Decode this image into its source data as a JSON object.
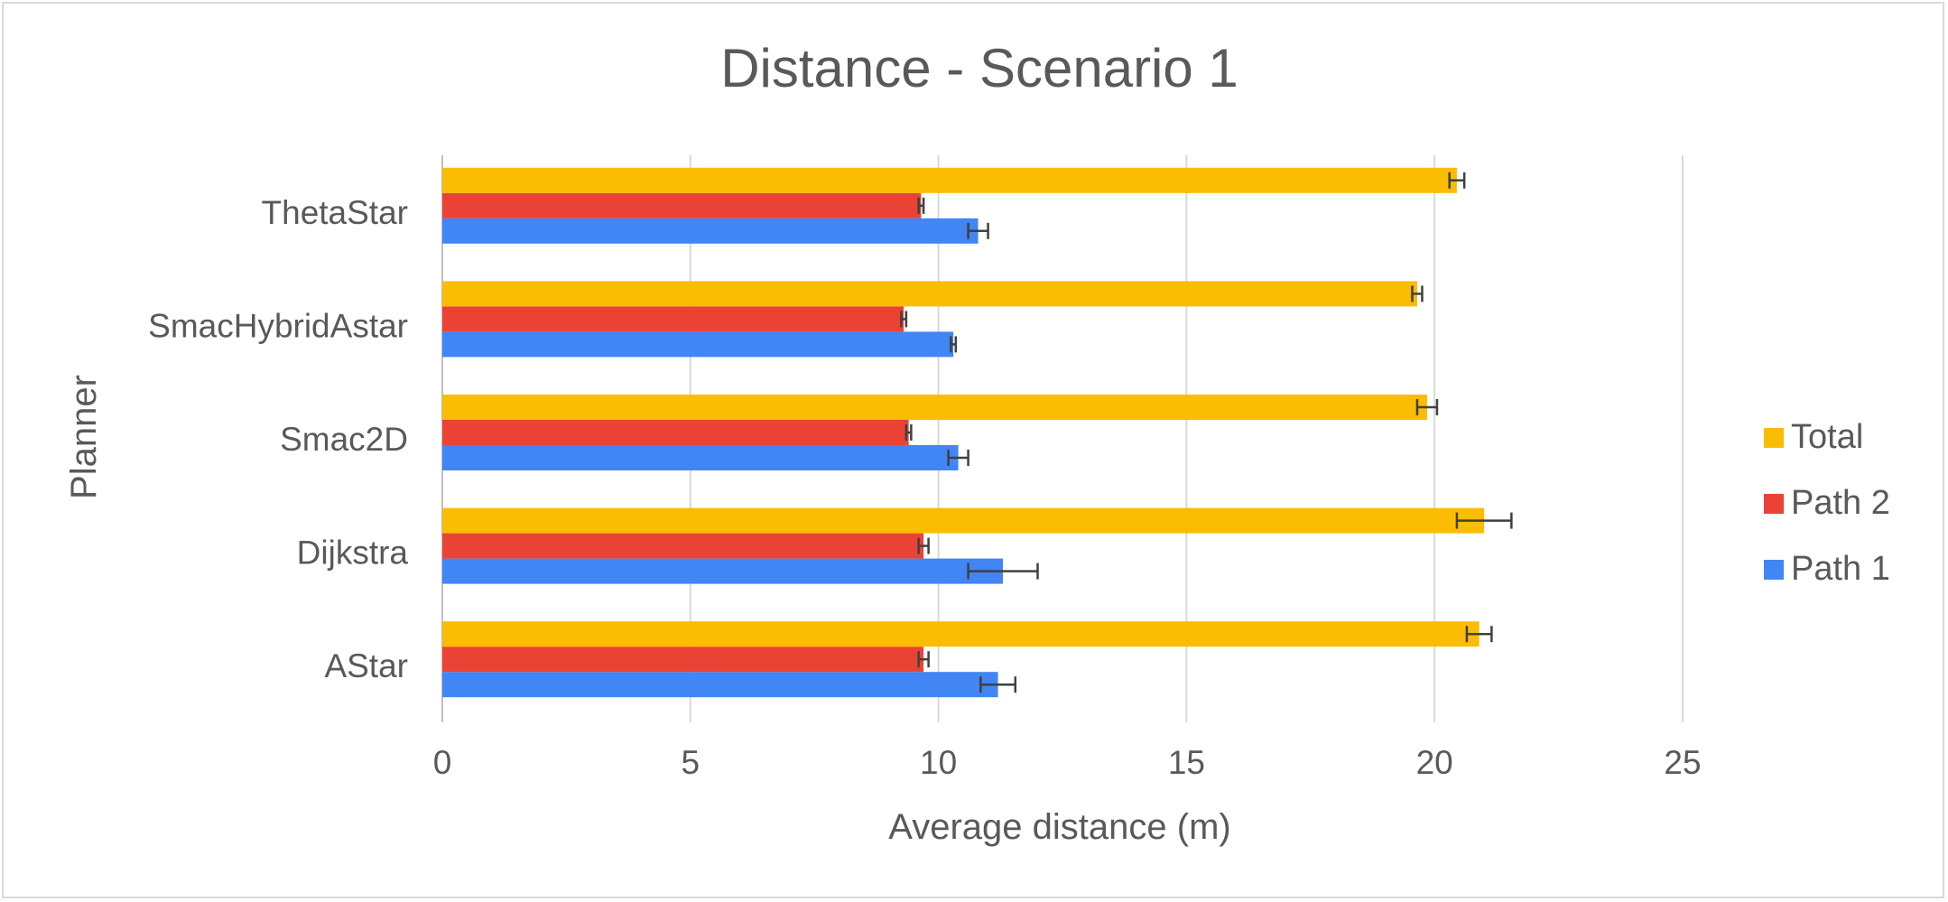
{
  "chart_data": {
    "type": "bar",
    "orientation": "horizontal",
    "title": "Distance  - Scenario 1",
    "xlabel": "Average distance (m)",
    "ylabel": "Planner",
    "xlim": [
      0,
      25
    ],
    "x_ticks": [
      0,
      5,
      10,
      15,
      20,
      25
    ],
    "grid": true,
    "legend_position": "right",
    "categories": [
      "AStar",
      "Dijkstra",
      "Smac2D",
      "SmacHybridAstar",
      "ThetaStar"
    ],
    "series": [
      {
        "name": "Path 1",
        "color": "#4285f4",
        "values": [
          11.2,
          11.3,
          10.4,
          10.3,
          10.8
        ],
        "errors": [
          0.35,
          0.7,
          0.2,
          0.05,
          0.2
        ]
      },
      {
        "name": "Path 2",
        "color": "#ea4335",
        "values": [
          9.7,
          9.7,
          9.4,
          9.3,
          9.65
        ],
        "errors": [
          0.1,
          0.1,
          0.05,
          0.05,
          0.05
        ]
      },
      {
        "name": "Total",
        "color": "#fbbc04",
        "values": [
          20.9,
          21.0,
          19.85,
          19.65,
          20.45
        ],
        "errors": [
          0.25,
          0.55,
          0.2,
          0.1,
          0.15
        ]
      }
    ]
  }
}
